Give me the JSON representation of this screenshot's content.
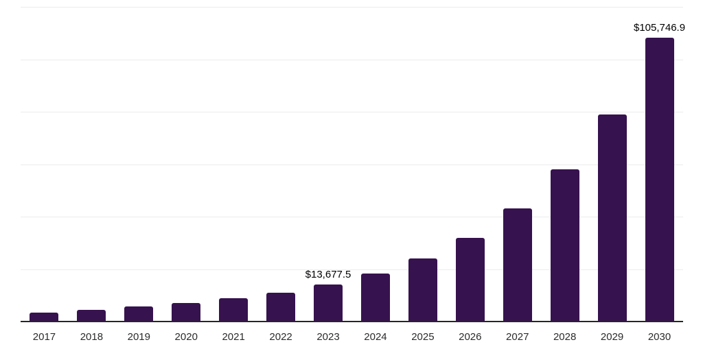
{
  "chart_data": {
    "type": "bar",
    "title": "",
    "xlabel": "",
    "ylabel": "",
    "categories": [
      "2017",
      "2018",
      "2019",
      "2020",
      "2021",
      "2022",
      "2023",
      "2024",
      "2025",
      "2026",
      "2027",
      "2028",
      "2029",
      "2030"
    ],
    "values": [
      3200,
      4200,
      5400,
      6700,
      8400,
      10600,
      13677.5,
      17700,
      23400,
      30900,
      42100,
      56500,
      77100,
      105746.9
    ],
    "labeled_points": [
      {
        "category": "2023",
        "index": 6,
        "text": "$13,677.5"
      },
      {
        "category": "2030",
        "index": 13,
        "text": "$105,746.9"
      }
    ],
    "ylim": [
      0,
      117500
    ],
    "grid": "horizontal",
    "gridline_count": 6,
    "legend": "none",
    "colors": {
      "bar": "#36124e",
      "gridline": "#ececec",
      "axis_line": "#262626",
      "tick_label": "#2b2b2b",
      "value_label": "#000000",
      "background": "#ffffff"
    }
  }
}
